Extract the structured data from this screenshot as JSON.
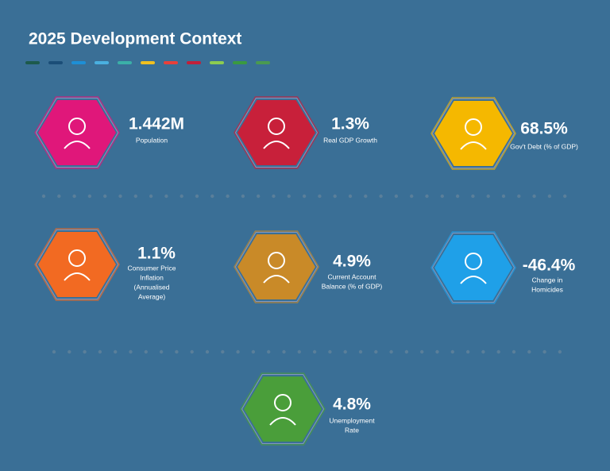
{
  "header": {
    "title": "2025 Development Context",
    "stripe_colors": [
      "#1d5a4c",
      "#1b4e78",
      "#1e8fd6",
      "#4ab0e0",
      "#3bb0a8",
      "#f0c020",
      "#e8403a",
      "#c0203a",
      "#8ccc50",
      "#3a9a40",
      "#4a9a50"
    ]
  },
  "items": [
    {
      "value": "1.442M",
      "label": [
        "Population"
      ],
      "color": "#e0177a"
    },
    {
      "value": "1.3%",
      "label": [
        "Real GDP Growth"
      ],
      "color": "#c8203a"
    },
    {
      "value": "68.5%",
      "label": [
        "Gov't Debt (% of GDP)"
      ],
      "color": "#f5b800"
    },
    {
      "value": "1.1%",
      "label": [
        "Consumer Price",
        "Inflation",
        "(Annualised",
        "Average)"
      ],
      "color": "#f26a22"
    },
    {
      "value": "4.9%",
      "label": [
        "Current Account",
        "Balance (% of GDP)"
      ],
      "color": "#c98a28"
    },
    {
      "value": "-46.4%",
      "label": [
        "Change in",
        "Homicides"
      ],
      "color": "#1fa0e8"
    },
    {
      "value": "4.8%",
      "label": [
        "Unemployment",
        "Rate"
      ],
      "color": "#4a9e3a"
    }
  ]
}
